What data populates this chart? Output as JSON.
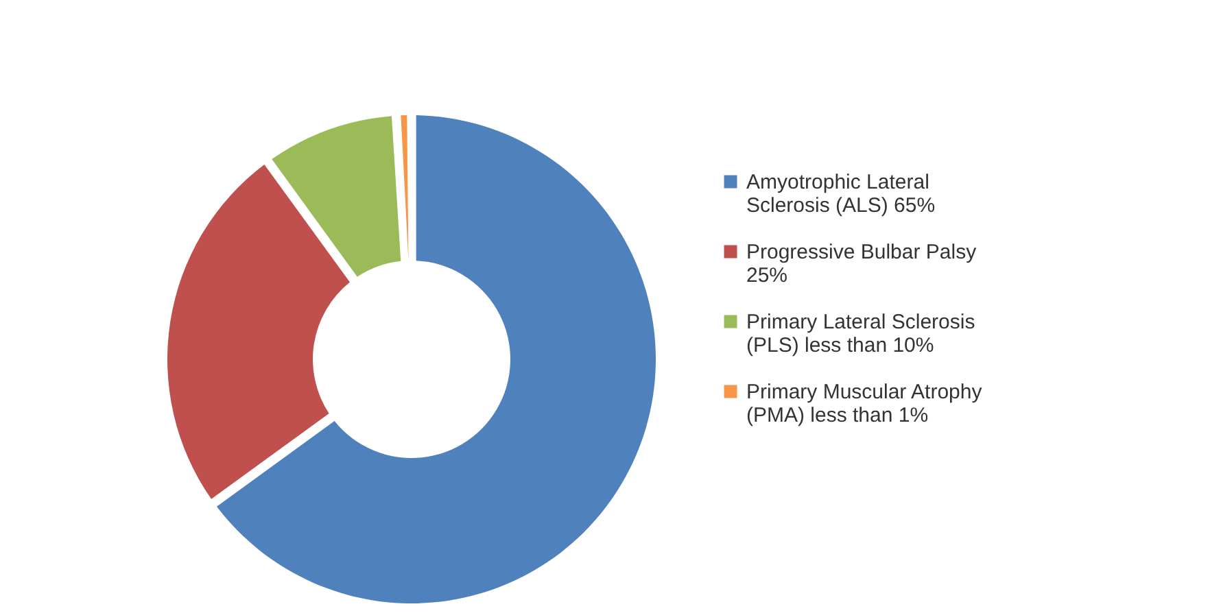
{
  "chart_data": {
    "type": "donut",
    "categories": [
      "Amyotrophic Lateral Sclerosis (ALS)   65%",
      "Progressive Bulbar Palsy 25%",
      "Primary Lateral Sclerosis (PLS)   less than 10%",
      "Primary Muscular Atrophy (PMA)   less than 1%"
    ],
    "values": [
      65,
      25,
      9,
      1
    ],
    "colors": [
      "#4f81bd",
      "#c0504d",
      "#9bbb59",
      "#f79646"
    ],
    "legend": "right"
  }
}
